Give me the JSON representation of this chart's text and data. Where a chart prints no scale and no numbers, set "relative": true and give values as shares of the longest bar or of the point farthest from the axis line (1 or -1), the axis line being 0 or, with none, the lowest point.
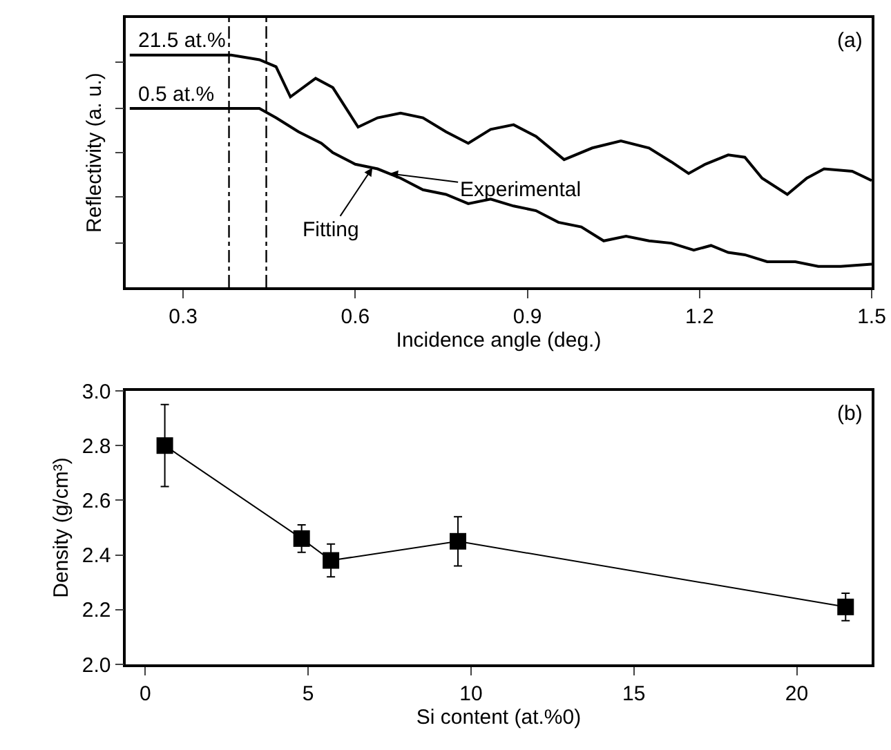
{
  "chart_data": [
    {
      "type": "line",
      "xlabel": "Incidence angle (deg.)",
      "ylabel": "Reflectivity (a. u.)",
      "relative": true,
      "xlim": [
        0.2,
        1.5
      ],
      "xticks": [
        0.3,
        0.6,
        0.9,
        1.2,
        1.5
      ],
      "tick_labels": "x",
      "grid": false,
      "legend": false,
      "marker": "none",
      "line_style": "solid",
      "series": [
        {
          "name": "21.5 at.%",
          "color": "#000000",
          "x": [
            0.207,
            0.384,
            0.433,
            0.462,
            0.487,
            0.531,
            0.561,
            0.605,
            0.639,
            0.679,
            0.718,
            0.758,
            0.797,
            0.836,
            0.876,
            0.915,
            0.964,
            1.013,
            1.063,
            1.112,
            1.151,
            1.181,
            1.21,
            1.25,
            1.279,
            1.309,
            1.353,
            1.387,
            1.417,
            1.466,
            1.5
          ],
          "values": [
            1.0,
            1.0,
            0.98,
            0.95,
            0.82,
            0.9,
            0.86,
            0.69,
            0.73,
            0.75,
            0.73,
            0.67,
            0.62,
            0.68,
            0.7,
            0.65,
            0.55,
            0.6,
            0.63,
            0.6,
            0.54,
            0.49,
            0.53,
            0.57,
            0.56,
            0.47,
            0.4,
            0.47,
            0.51,
            0.5,
            0.46
          ]
        },
        {
          "name": "0.5 at.%",
          "color": "#000000",
          "x": [
            0.207,
            0.433,
            0.462,
            0.501,
            0.541,
            0.561,
            0.6,
            0.639,
            0.679,
            0.718,
            0.758,
            0.797,
            0.836,
            0.876,
            0.915,
            0.954,
            0.994,
            1.033,
            1.072,
            1.112,
            1.151,
            1.19,
            1.22,
            1.25,
            1.279,
            1.318,
            1.367,
            1.407,
            1.446,
            1.5
          ],
          "values": [
            0.77,
            0.77,
            0.73,
            0.67,
            0.62,
            0.58,
            0.53,
            0.51,
            0.47,
            0.42,
            0.4,
            0.36,
            0.38,
            0.35,
            0.33,
            0.28,
            0.26,
            0.2,
            0.22,
            0.2,
            0.19,
            0.16,
            0.18,
            0.15,
            0.14,
            0.11,
            0.11,
            0.09,
            0.09,
            0.1
          ]
        }
      ],
      "ref_lines": [
        {
          "axis": "x",
          "value": 0.38,
          "color": "#000000",
          "line_style": "dashed"
        },
        {
          "axis": "x",
          "value": 0.445,
          "color": "#000000",
          "line_style": "dashed"
        }
      ],
      "annotations": [
        "(a)",
        {
          "text": "Experimental",
          "x": 0.66,
          "y": 0.49
        },
        {
          "text": "Fitting",
          "x": 0.63,
          "y": 0.515
        }
      ]
    },
    {
      "type": "line",
      "xlabel": "Si content (at.%0)",
      "ylabel": "Density (g/cm³)",
      "xlim": [
        -0.6,
        22.3
      ],
      "ylim": [
        2.0,
        3.0
      ],
      "xticks": [
        0,
        5,
        10,
        15,
        20
      ],
      "yticks": [
        {
          "value": 2.0,
          "label": "2.0"
        },
        2.2,
        2.4,
        2.6,
        2.8,
        {
          "value": 3.0,
          "label": "3.0"
        }
      ],
      "grid": false,
      "legend": false,
      "marker": "square",
      "line_style": "solid",
      "series": [
        {
          "color": "#000000",
          "x": [
            0.6,
            4.8,
            5.7,
            9.6,
            21.5
          ],
          "values": [
            2.8,
            2.46,
            2.38,
            2.45,
            2.21
          ],
          "errors": [
            0.15,
            0.05,
            0.06,
            0.09,
            0.05
          ]
        }
      ],
      "annotations": [
        "(b)"
      ]
    }
  ]
}
